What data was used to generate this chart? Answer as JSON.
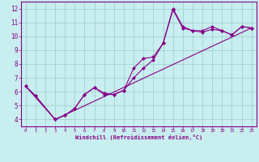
{
  "xlabel": "Windchill (Refroidissement éolien,°C)",
  "background_color": "#c8eef0",
  "line_color": "#880088",
  "grid_color": "#99cccc",
  "xlim": [
    -0.5,
    23.5
  ],
  "ylim": [
    3.5,
    12.5
  ],
  "xticks": [
    0,
    1,
    2,
    3,
    4,
    5,
    6,
    7,
    8,
    9,
    10,
    11,
    12,
    13,
    14,
    15,
    16,
    17,
    18,
    19,
    20,
    21,
    22,
    23
  ],
  "yticks": [
    4,
    5,
    6,
    7,
    8,
    9,
    10,
    11,
    12
  ],
  "line1_x": [
    0,
    1,
    3,
    4,
    5,
    6,
    7,
    8,
    9,
    10,
    11,
    12,
    13,
    14,
    15,
    16,
    17,
    18,
    19,
    20,
    21,
    22,
    23
  ],
  "line1_y": [
    6.4,
    5.7,
    4.0,
    4.3,
    4.8,
    5.8,
    6.3,
    5.8,
    5.8,
    6.1,
    7.0,
    7.7,
    8.3,
    9.5,
    12.0,
    10.7,
    10.4,
    10.3,
    10.5,
    10.4,
    10.1,
    10.7,
    10.6
  ],
  "line2_x": [
    0,
    1,
    3,
    4,
    5,
    6,
    7,
    8,
    9,
    10,
    11,
    12,
    13,
    14,
    15,
    16,
    17,
    18,
    19,
    20,
    21,
    22,
    23
  ],
  "line2_y": [
    6.4,
    5.7,
    4.0,
    4.3,
    4.8,
    5.8,
    6.3,
    5.9,
    5.8,
    6.1,
    7.7,
    8.4,
    8.5,
    9.5,
    11.9,
    10.6,
    10.4,
    10.4,
    10.7,
    10.4,
    10.1,
    10.7,
    10.6
  ],
  "line3_x": [
    0,
    3,
    23
  ],
  "line3_y": [
    6.4,
    4.0,
    10.6
  ],
  "figsize": [
    3.2,
    2.0
  ],
  "dpi": 100
}
